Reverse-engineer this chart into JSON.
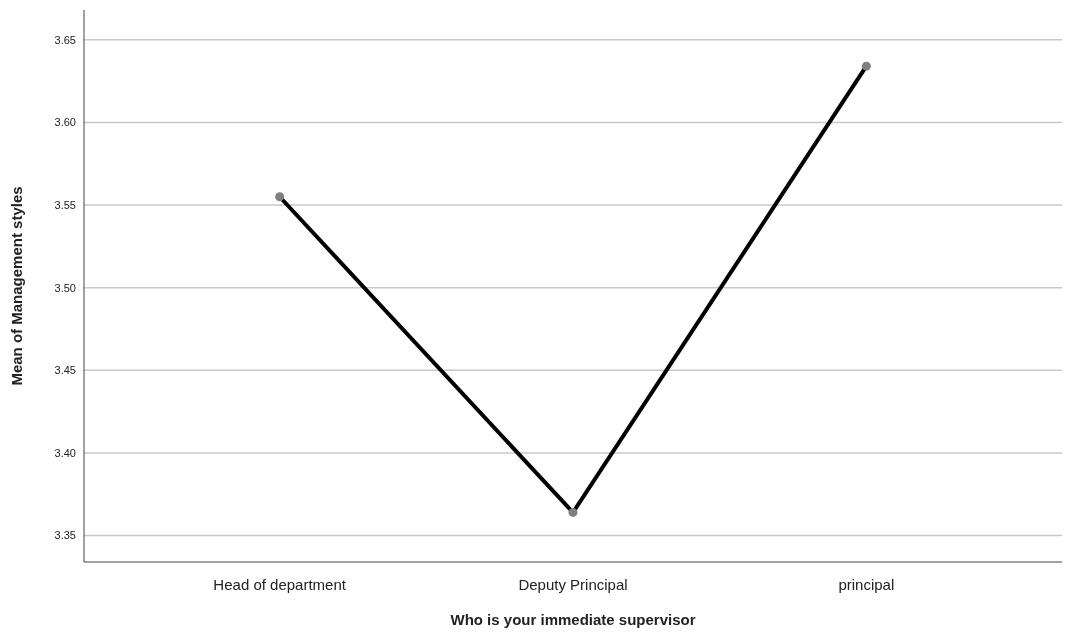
{
  "chart_data": {
    "type": "line",
    "xlabel": "Who is your immediate supervisor",
    "ylabel": "Mean of Management styles",
    "categories": [
      "Head of department",
      "Deputy Principal",
      "principal"
    ],
    "series": [
      {
        "color": "#000000",
        "values": [
          3.555,
          3.364,
          3.634
        ]
      }
    ],
    "ylim": [
      3.334,
      3.668
    ],
    "yticks": [
      {
        "value": 3.35,
        "label": "3.35"
      },
      {
        "value": 3.4,
        "label": "3.40"
      },
      {
        "value": 3.45,
        "label": "3.45"
      },
      {
        "value": 3.5,
        "label": "3.50"
      },
      {
        "value": 3.55,
        "label": "3.55"
      },
      {
        "value": 3.6,
        "label": "3.60"
      },
      {
        "value": 3.65,
        "label": "3.65"
      }
    ],
    "grid": "y",
    "marker": "circle",
    "line_style": "solid"
  }
}
